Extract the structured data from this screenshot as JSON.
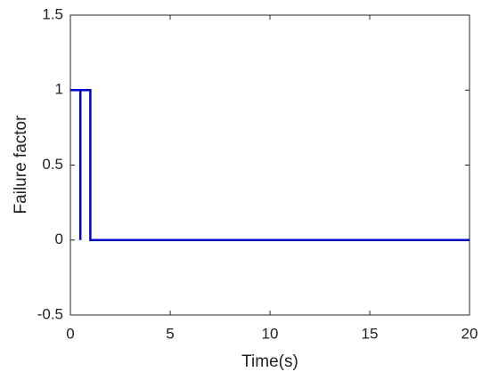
{
  "chart_data": {
    "type": "line",
    "x_label": "Time(s)",
    "y_label": "Failure factor",
    "x": [
      0,
      0.5,
      0.5,
      0.5,
      1,
      1,
      20
    ],
    "series": [
      {
        "color": "#0000cc",
        "values": [
          1,
          1,
          0,
          1,
          1,
          0,
          0
        ]
      }
    ],
    "xlim": [
      0,
      20
    ],
    "xticks": [
      0,
      5,
      10,
      15,
      20
    ],
    "ylim": [
      -0.5,
      1.5
    ],
    "yticks": [
      -0.5,
      0,
      0.5,
      1,
      1.5
    ],
    "grid": false
  }
}
